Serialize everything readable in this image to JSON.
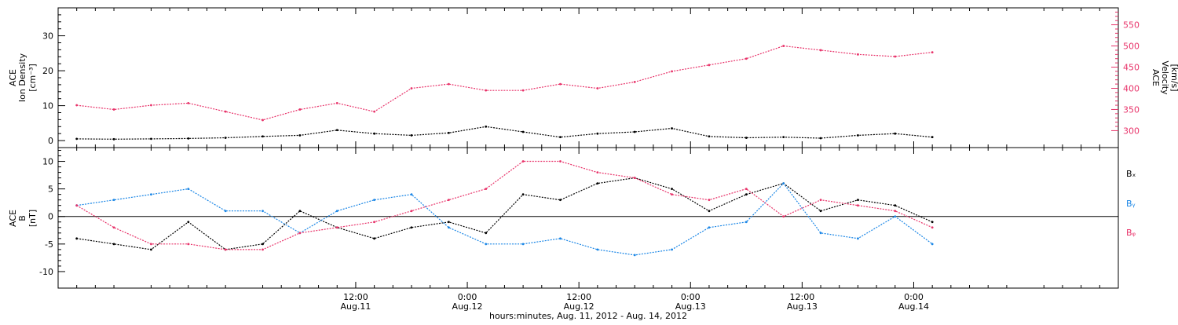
{
  "colors": {
    "black": "#000000",
    "pink": "#e8336a",
    "blue": "#1a86e6"
  },
  "chart_data": [
    {
      "panel": "top",
      "type": "scatter",
      "left_axis": {
        "label_lines": [
          "ACE",
          "Ion Density",
          "[cm⁻³]"
        ],
        "ylim": [
          -2,
          38
        ],
        "ticks": [
          0,
          10,
          20,
          30
        ],
        "tick_labels": [
          "0",
          "10",
          "20",
          "30"
        ]
      },
      "right_axis": {
        "label_lines": [
          "ACE",
          "Velocity",
          "[km/s]"
        ],
        "ylim": [
          260,
          590
        ],
        "ticks": [
          300,
          350,
          400,
          450,
          500,
          550
        ],
        "tick_labels": [
          "300",
          "350",
          "400",
          "450",
          "500",
          "550"
        ]
      },
      "series": [
        {
          "axis": "left",
          "color": "black",
          "x": [
            -18,
            -14,
            -10,
            -6,
            -2,
            2,
            6,
            10,
            14,
            18,
            22,
            26,
            30,
            34,
            38,
            42,
            46,
            50,
            54,
            58,
            62,
            66,
            70,
            74
          ],
          "y": [
            0.5,
            0.4,
            0.5,
            0.6,
            0.8,
            1.2,
            1.5,
            3.0,
            2.0,
            1.5,
            2.2,
            4.0,
            2.5,
            1.0,
            2.0,
            2.5,
            3.5,
            1.2,
            0.8,
            1.0,
            0.7,
            1.5,
            2.0,
            1.0
          ]
        },
        {
          "axis": "right",
          "color": "pink",
          "x": [
            -18,
            -14,
            -10,
            -6,
            -2,
            2,
            6,
            10,
            14,
            18,
            22,
            26,
            30,
            34,
            38,
            42,
            46,
            50,
            54,
            58,
            62,
            66,
            70,
            74
          ],
          "y": [
            360,
            350,
            360,
            365,
            345,
            325,
            350,
            365,
            345,
            400,
            410,
            395,
            395,
            410,
            400,
            415,
            440,
            455,
            470,
            500,
            490,
            480,
            475,
            485
          ]
        }
      ]
    },
    {
      "panel": "bottom",
      "type": "line",
      "left_axis": {
        "label_lines": [
          "ACE",
          "B",
          "[nT]"
        ],
        "ylim": [
          -13,
          12.5
        ],
        "ticks": [
          -10,
          -5,
          0,
          5,
          10
        ],
        "tick_labels": [
          "-10",
          "-5",
          "0",
          "5",
          "10"
        ]
      },
      "zero_line": true,
      "series": [
        {
          "name": "Bₓ",
          "color": "black",
          "x": [
            -18,
            -14,
            -10,
            -6,
            -2,
            2,
            6,
            10,
            14,
            18,
            22,
            26,
            30,
            34,
            38,
            42,
            46,
            50,
            54,
            58,
            62,
            66,
            70,
            74
          ],
          "y": [
            -4,
            -5,
            -6,
            -1,
            -6,
            -5,
            1,
            -2,
            -4,
            -2,
            -1,
            -3,
            4,
            3,
            6,
            7,
            5,
            1,
            4,
            6,
            1,
            3,
            2,
            -1
          ]
        },
        {
          "name": "Bᵧ",
          "color": "blue",
          "x": [
            -18,
            -14,
            -10,
            -6,
            -2,
            2,
            6,
            10,
            14,
            18,
            22,
            26,
            30,
            34,
            38,
            42,
            46,
            50,
            54,
            58,
            62,
            66,
            70,
            74
          ],
          "y": [
            2,
            3,
            4,
            5,
            1,
            1,
            -3,
            1,
            3,
            4,
            -2,
            -5,
            -5,
            -4,
            -6,
            -7,
            -6,
            -2,
            -1,
            6,
            -3,
            -4,
            0,
            -5
          ]
        },
        {
          "name": "Bᵩ",
          "color": "pink",
          "x": [
            -18,
            -14,
            -10,
            -6,
            -2,
            2,
            6,
            10,
            14,
            18,
            22,
            26,
            30,
            34,
            38,
            42,
            46,
            50,
            54,
            58,
            62,
            66,
            70,
            74
          ],
          "y": [
            2,
            -2,
            -5,
            -5,
            -6,
            -6,
            -3,
            -2,
            -1,
            1,
            3,
            5,
            10,
            10,
            8,
            7,
            4,
            3,
            5,
            0,
            3,
            2,
            1,
            -2
          ]
        }
      ]
    }
  ],
  "x_axis": {
    "xlim": [
      -20,
      94
    ],
    "ticks": [
      12,
      24,
      36,
      48,
      60,
      72
    ],
    "tick_time_labels": [
      "12:00",
      "0:00",
      "12:00",
      "0:00",
      "12:00",
      "0:00"
    ],
    "tick_date_labels": [
      "Aug.11",
      "Aug.12",
      "Aug.12",
      "Aug.13",
      "Aug.13",
      "Aug.14"
    ],
    "title": "hours:minutes, Aug. 11, 2012 - Aug. 14, 2012"
  }
}
